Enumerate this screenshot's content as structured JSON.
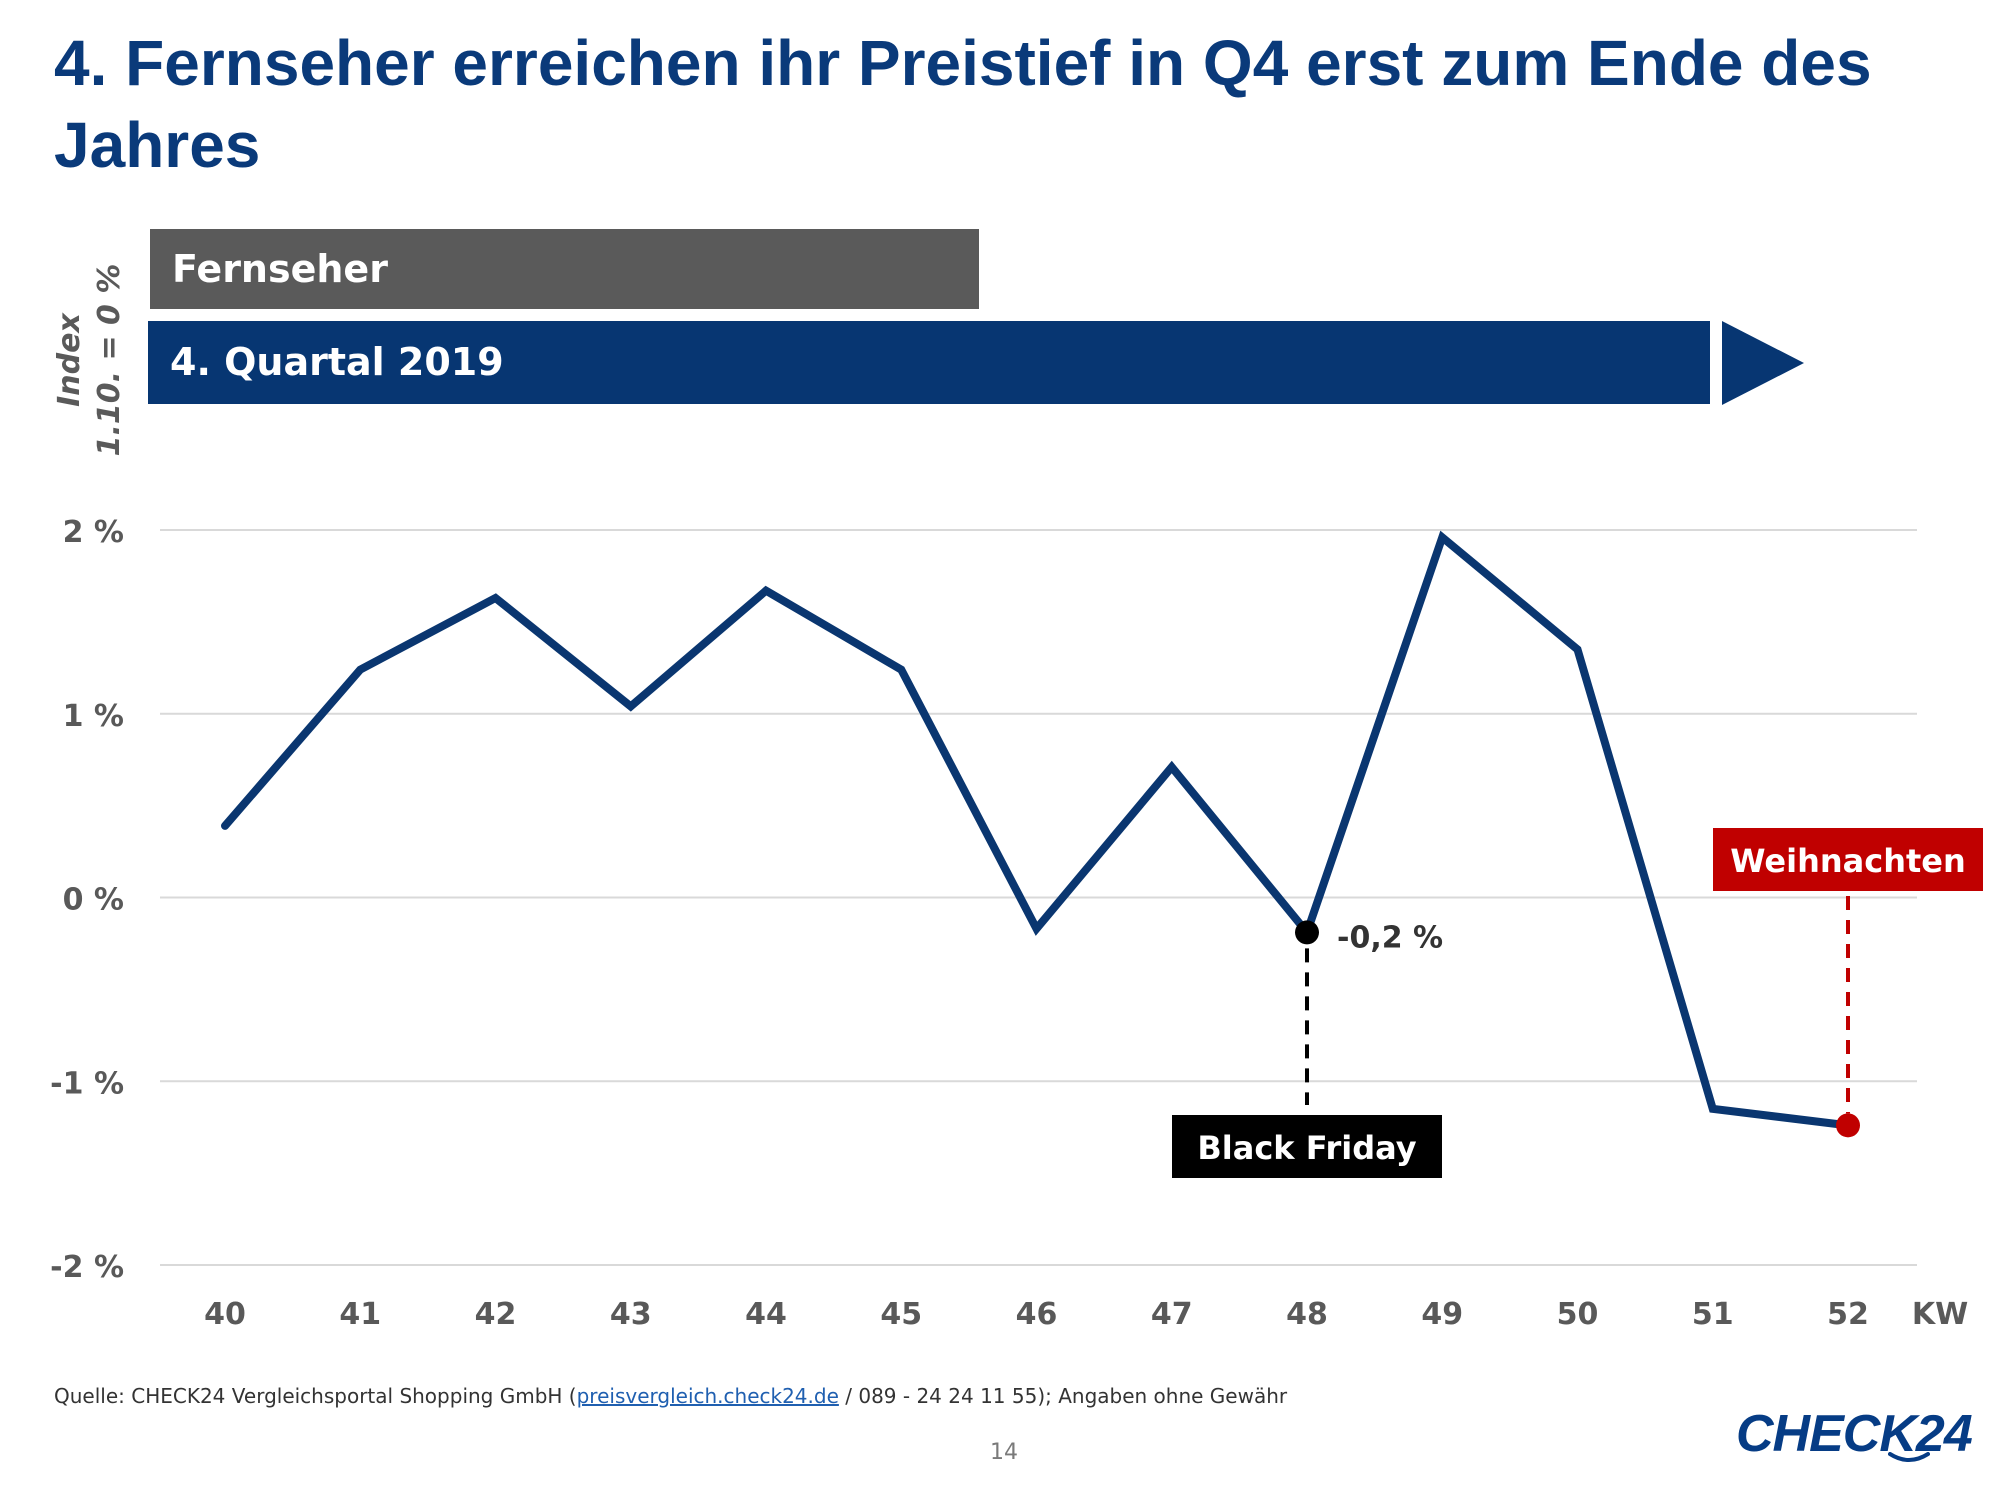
{
  "title": "4. Fernseher erreichen ihr Preistief in Q4 erst zum Ende des Jahres",
  "index_label": {
    "line1": "Index",
    "line2": "1.10. = 0 %"
  },
  "band_category": "Fernseher",
  "band_period": "4. Quartal 2019",
  "chart_data": {
    "type": "line",
    "x": [
      40,
      41,
      42,
      43,
      44,
      45,
      46,
      47,
      48,
      49,
      50,
      51,
      52
    ],
    "x_tick_labels": [
      "40",
      "41",
      "42",
      "43",
      "44",
      "45",
      "46",
      "47",
      "48",
      "49",
      "50",
      "51",
      "52"
    ],
    "xlabel": "KW",
    "ylim": [
      -2,
      2
    ],
    "y_ticks": [
      2,
      1,
      0,
      -1,
      -2
    ],
    "y_tick_labels": [
      "2 %",
      "1 %",
      "0 %",
      "-1 %",
      "-2 %"
    ],
    "grid": true,
    "series": [
      {
        "name": "Fernseher",
        "color": "#0a3670",
        "values": [
          0.39,
          1.24,
          1.63,
          1.04,
          1.67,
          1.24,
          -0.17,
          0.71,
          -0.19,
          1.96,
          1.35,
          -1.15,
          -1.24
        ]
      }
    ],
    "annotations": [
      {
        "label": "Black Friday",
        "x": 48,
        "value_label": "-0,2 %",
        "color": "#000000"
      },
      {
        "label": "Weihnachten",
        "x": 52,
        "color": "#c00000"
      }
    ]
  },
  "source": {
    "prefix": "Quelle: CHECK24 Vergleichsportal Shopping GmbH (",
    "link": "preisvergleich.check24.de",
    "suffix": " / 089 - 24 24 11 55); Angaben ohne Gewähr"
  },
  "page_number": "14",
  "logo_text": "CHECK24",
  "colors": {
    "title": "#0a3a7a",
    "band_gray": "#5a5a5a",
    "band_blue": "#073672",
    "line": "#0a3670",
    "accent_red": "#c00000",
    "grid": "#d9d9d9",
    "axis_text": "#595959"
  }
}
